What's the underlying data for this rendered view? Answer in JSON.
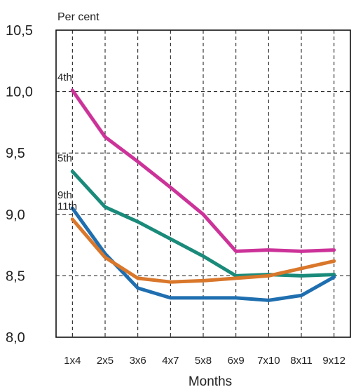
{
  "chart_data": {
    "type": "line",
    "unit_label": "Per cent",
    "xlabel": "Months",
    "ylabel": "",
    "categories": [
      "1x4",
      "2x5",
      "3x6",
      "4x7",
      "5x8",
      "6x9",
      "7x10",
      "8x11",
      "9x12"
    ],
    "ylim": [
      8.0,
      10.5
    ],
    "yticks": [
      "8,0",
      "8,5",
      "9,0",
      "9,5",
      "10,0",
      "10,5"
    ],
    "grid": true,
    "series": [
      {
        "name": "4th",
        "color": "#cc3399",
        "values": [
          10.01,
          9.63,
          9.43,
          9.22,
          9.0,
          8.7,
          8.71,
          8.7,
          8.71
        ]
      },
      {
        "name": "5th",
        "color": "#1a8a7a",
        "values": [
          9.35,
          9.06,
          8.94,
          8.8,
          8.66,
          8.5,
          8.51,
          8.5,
          8.51
        ]
      },
      {
        "name": "9th",
        "color": "#1f6fb0",
        "values": [
          9.05,
          8.68,
          8.4,
          8.32,
          8.32,
          8.32,
          8.3,
          8.34,
          8.49
        ]
      },
      {
        "name": "11th",
        "color": "#d9772b",
        "values": [
          8.96,
          8.65,
          8.48,
          8.45,
          8.46,
          8.48,
          8.5,
          8.56,
          8.62
        ]
      }
    ]
  }
}
